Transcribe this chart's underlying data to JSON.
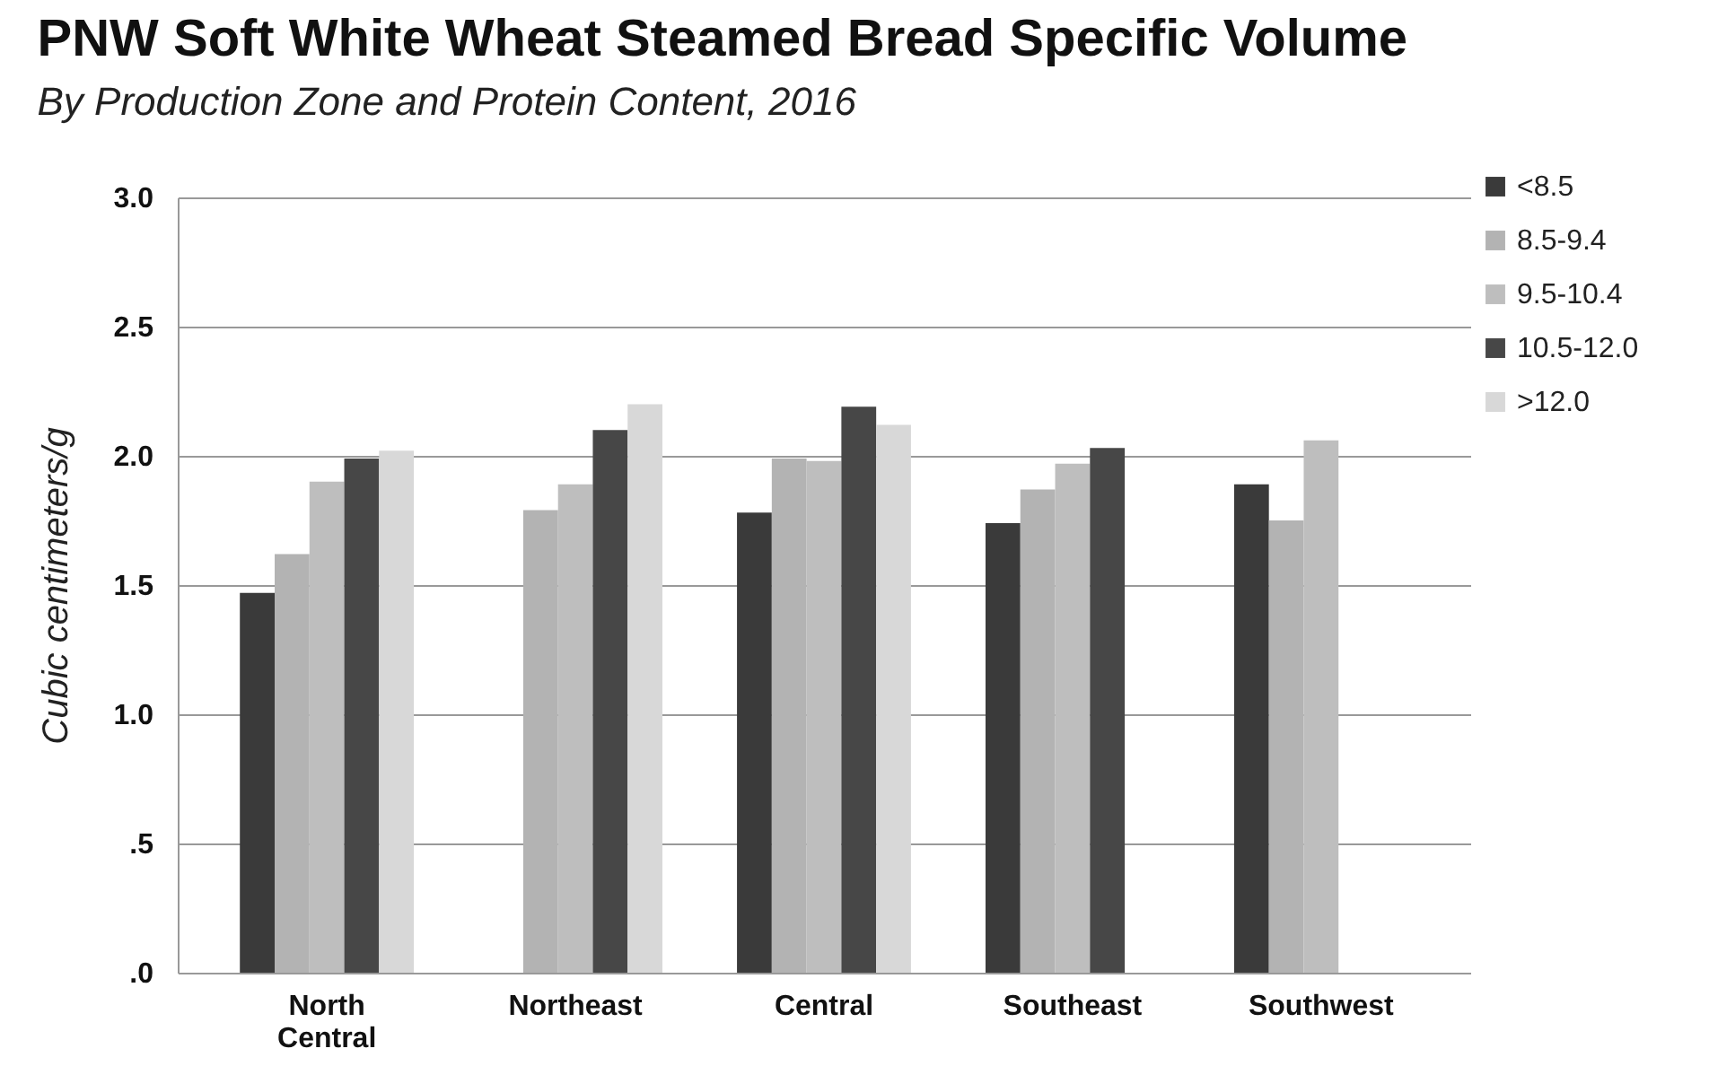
{
  "chart_data": {
    "type": "bar",
    "title": "PNW Soft White Wheat Steamed Bread Specific Volume",
    "subtitle": "By Production Zone and Protein Content, 2016",
    "ylabel": "Cubic centimeters/g",
    "categories": [
      "North Central",
      "Northeast",
      "Central",
      "Southeast",
      "Southwest"
    ],
    "series": [
      {
        "name": "<8.5",
        "color": "#3a3a3a",
        "values": [
          1.47,
          null,
          1.78,
          1.74,
          1.89
        ]
      },
      {
        "name": "8.5-9.4",
        "color": "#b3b3b3",
        "values": [
          1.62,
          1.79,
          1.99,
          1.87,
          1.75
        ]
      },
      {
        "name": "9.5-10.4",
        "color": "#bebebe",
        "values": [
          1.9,
          1.89,
          1.98,
          1.97,
          2.06
        ]
      },
      {
        "name": "10.5-12.0",
        "color": "#474747",
        "values": [
          1.99,
          2.1,
          2.19,
          2.03,
          null
        ]
      },
      {
        "name": ">12.0",
        "color": "#d8d8d8",
        "values": [
          2.02,
          2.2,
          2.12,
          null,
          null
        ]
      }
    ],
    "ylim": [
      0,
      3
    ],
    "yticks": [
      {
        "value": 0,
        "label": ".0"
      },
      {
        "value": 0.5,
        "label": ".5"
      },
      "1.0",
      "1.5",
      "2.0",
      "2.5",
      "3.0"
    ],
    "grid": "y",
    "legend": "top right"
  }
}
